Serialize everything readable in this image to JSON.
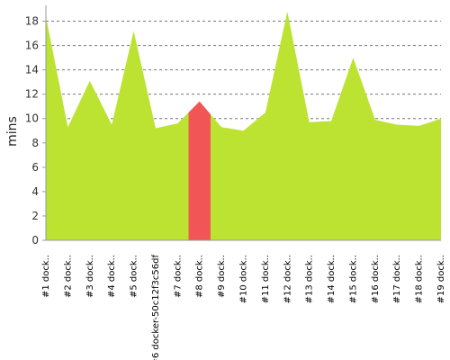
{
  "chart_data": {
    "type": "area",
    "title": "",
    "xlabel": "",
    "ylabel": "mins",
    "ylim": [
      0,
      19
    ],
    "yticks": [
      0,
      2,
      4,
      6,
      8,
      10,
      12,
      14,
      16,
      18
    ],
    "grid": true,
    "legend": "none",
    "categories": [
      "#1 dock..",
      "#2 dock..",
      "#3 dock..",
      "#4 dock..",
      "#5 dock..",
      "#6 docker-50c12f3c56df",
      "#7 dock..",
      "#8 dock..",
      "#9 dock..",
      "#10 dock..",
      "#11 dock..",
      "#12 dock..",
      "#13 dock..",
      "#14 dock..",
      "#15 dock..",
      "#16 dock..",
      "#17 dock..",
      "#18 dock..",
      "#19 dock.."
    ],
    "values": [
      18.4,
      9.3,
      13.1,
      9.5,
      17.2,
      9.2,
      9.6,
      11.4,
      9.3,
      9.0,
      10.5,
      18.8,
      9.7,
      9.8,
      15.0,
      9.9,
      9.5,
      9.4,
      10.0
    ],
    "highlight_index": 7,
    "colors": {
      "fill": "#bde332",
      "highlight": "#f25555",
      "grid": "#777777",
      "axis": "#999999"
    }
  }
}
